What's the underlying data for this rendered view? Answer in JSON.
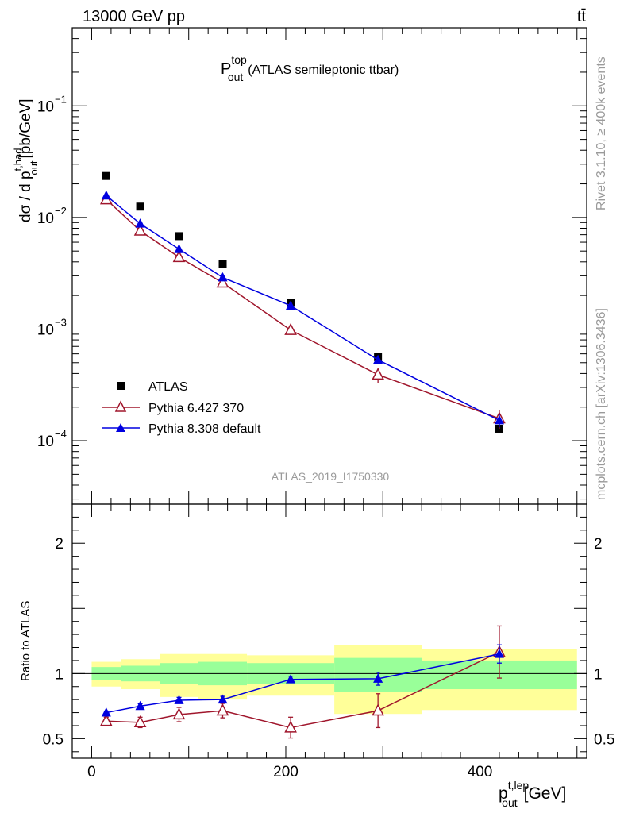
{
  "header": {
    "energy_label": "13000 GeV pp",
    "process_label": "tt̄"
  },
  "side_labels": {
    "rivet": "Rivet 3.1.10, ≥ 400k events",
    "mcplots": "mcplots.cern.ch [arXiv:1306.3436]"
  },
  "chart_data": [
    {
      "type": "scatter",
      "panel": "main",
      "title": "P",
      "title_sup": "top",
      "title_sub": "out",
      "title_suffix": "(ATLAS semileptonic ttbar)",
      "watermark": "ATLAS_2019_I1750330",
      "ylabel": {
        "pre": "dσ / d p",
        "sup": "t,had",
        "sub": "out",
        "post": "[pb/GeV]"
      },
      "yscale": "log",
      "ylim": [
        2.7e-05,
        0.5
      ],
      "xlim": [
        -20,
        510
      ],
      "ytick_labels": [
        {
          "value": 0.1,
          "base": "10",
          "exp": "−1"
        },
        {
          "value": 0.01,
          "base": "10",
          "exp": "−2"
        },
        {
          "value": 0.001,
          "base": "10",
          "exp": "−3"
        },
        {
          "value": 0.0001,
          "base": "10",
          "exp": "−4"
        }
      ],
      "legend_position": "bottom-left",
      "series": [
        {
          "name": "ATLAS",
          "marker": "filled-square",
          "color": "#000000",
          "x": [
            15,
            50,
            90,
            135,
            205,
            295,
            420
          ],
          "y": [
            0.0235,
            0.0125,
            0.0068,
            0.0038,
            0.00172,
            0.00056,
            0.000128
          ]
        },
        {
          "name": "Pythia 6.427 370",
          "marker": "open-triangle",
          "color": "#a0162c",
          "x": [
            15,
            50,
            90,
            135,
            205,
            295,
            420
          ],
          "y": [
            0.0145,
            0.0076,
            0.0044,
            0.0026,
            0.00098,
            0.00039,
            0.000158
          ],
          "yerr": [
            0.0006,
            0.0004,
            0.0003,
            0.0002,
            8e-05,
            6e-05,
            3e-05
          ]
        },
        {
          "name": "Pythia 8.308 default",
          "marker": "filled-triangle",
          "color": "#0000e0",
          "x": [
            15,
            50,
            90,
            135,
            205,
            295,
            420
          ],
          "y": [
            0.0157,
            0.0088,
            0.0052,
            0.0029,
            0.00162,
            0.00053,
            0.000152
          ],
          "yerr": [
            0.0003,
            0.0002,
            0.0001,
            0.0001,
            5e-05,
            3e-05,
            2e-05
          ]
        }
      ]
    },
    {
      "type": "scatter",
      "panel": "ratio",
      "ylabel": "Ratio to ATLAS",
      "xlabel": {
        "pre": "p",
        "sup": "t,lep",
        "sub": "out",
        "post": "[GeV]"
      },
      "ylim": [
        0.35,
        2.3
      ],
      "xlim": [
        -20,
        510
      ],
      "xticks": [
        0,
        200,
        400
      ],
      "yticks": [
        0.5,
        1,
        2
      ],
      "bands": [
        {
          "x0": 0,
          "x1": 30,
          "stat": [
            0.95,
            1.05
          ],
          "total": [
            0.9,
            1.09
          ]
        },
        {
          "x0": 30,
          "x1": 70,
          "stat": [
            0.94,
            1.06
          ],
          "total": [
            0.88,
            1.11
          ]
        },
        {
          "x0": 70,
          "x1": 110,
          "stat": [
            0.92,
            1.08
          ],
          "total": [
            0.82,
            1.15
          ]
        },
        {
          "x0": 110,
          "x1": 160,
          "stat": [
            0.91,
            1.09
          ],
          "total": [
            0.8,
            1.15
          ]
        },
        {
          "x0": 160,
          "x1": 250,
          "stat": [
            0.92,
            1.08
          ],
          "total": [
            0.83,
            1.14
          ]
        },
        {
          "x0": 250,
          "x1": 340,
          "stat": [
            0.86,
            1.12
          ],
          "total": [
            0.69,
            1.22
          ]
        },
        {
          "x0": 340,
          "x1": 500,
          "stat": [
            0.88,
            1.1
          ],
          "total": [
            0.72,
            1.19
          ]
        }
      ],
      "series": [
        {
          "name": "Pythia 6.427 370",
          "marker": "open-triangle",
          "color": "#a0162c",
          "x": [
            15,
            50,
            90,
            135,
            205,
            295,
            420
          ],
          "y": [
            0.635,
            0.625,
            0.685,
            0.715,
            0.585,
            0.715,
            1.165
          ],
          "yerr": [
            0.03,
            0.04,
            0.055,
            0.055,
            0.08,
            0.13,
            0.2
          ]
        },
        {
          "name": "Pythia 8.308 default",
          "marker": "filled-triangle",
          "color": "#0000e0",
          "x": [
            15,
            50,
            90,
            135,
            205,
            295,
            420
          ],
          "y": [
            0.7,
            0.75,
            0.795,
            0.8,
            0.955,
            0.96,
            1.15
          ],
          "yerr": [
            0.012,
            0.018,
            0.022,
            0.025,
            0.025,
            0.05,
            0.07
          ]
        }
      ]
    }
  ]
}
